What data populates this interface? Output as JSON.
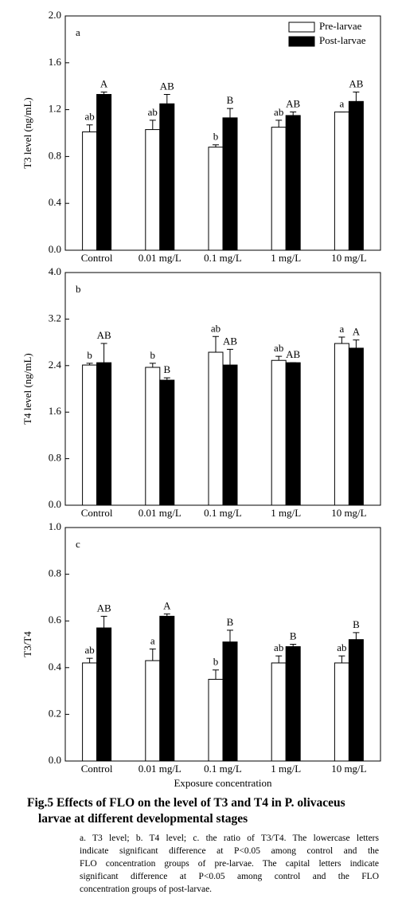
{
  "chart_data": [
    {
      "type": "bar",
      "panel": "a",
      "ylabel": "T3 level (ng/mL)",
      "categories": [
        "Control",
        "0.01 mg/L",
        "0.1 mg/L",
        "1 mg/L",
        "10 mg/L"
      ],
      "series": [
        {
          "name": "Pre-larvae",
          "color": "#ffffff",
          "values": [
            1.01,
            1.03,
            0.88,
            1.05,
            1.18
          ],
          "errors": [
            0.06,
            0.08,
            0.02,
            0.06,
            0
          ],
          "letters": [
            "ab",
            "ab",
            "b",
            "ab",
            "a"
          ]
        },
        {
          "name": "Post-larvae",
          "color": "#000000",
          "values": [
            1.33,
            1.25,
            1.13,
            1.15,
            1.27
          ],
          "errors": [
            0.02,
            0.08,
            0.08,
            0.03,
            0.08
          ],
          "letters": [
            "A",
            "AB",
            "B",
            "AB",
            "AB"
          ]
        }
      ],
      "ylim": [
        0,
        2
      ],
      "yticks": [
        {
          "value": 0,
          "label": "0.0"
        },
        0.4,
        0.8,
        1.2,
        1.6,
        {
          "value": 2,
          "label": "2.0"
        }
      ],
      "legend": "upper right"
    },
    {
      "type": "bar",
      "panel": "b",
      "ylabel": "T4 level (ng/mL)",
      "categories": [
        "Control",
        "0.01 mg/L",
        "0.1 mg/L",
        "1 mg/L",
        "10 mg/L"
      ],
      "series": [
        {
          "name": "Pre-larvae",
          "color": "#ffffff",
          "values": [
            2.41,
            2.37,
            2.63,
            2.49,
            2.78
          ],
          "errors": [
            0.03,
            0.07,
            0.27,
            0.07,
            0.11
          ],
          "letters": [
            "b",
            "b",
            "ab",
            "ab",
            "a"
          ]
        },
        {
          "name": "Post-larvae",
          "color": "#000000",
          "values": [
            2.45,
            2.15,
            2.41,
            2.45,
            2.7
          ],
          "errors": [
            0.33,
            0.04,
            0.27,
            0,
            0.14
          ],
          "letters": [
            "AB",
            "B",
            "AB",
            "AB",
            "A"
          ]
        }
      ],
      "ylim": [
        0,
        4
      ],
      "yticks": [
        {
          "value": 0,
          "label": "0.0"
        },
        0.8,
        1.6,
        2.4,
        3.2,
        {
          "value": 4,
          "label": "4.0"
        }
      ]
    },
    {
      "type": "bar",
      "panel": "c",
      "ylabel": "T3/T4",
      "xlabel": "Exposure concentration",
      "categories": [
        "Control",
        "0.01 mg/L",
        "0.1 mg/L",
        "1 mg/L",
        "10 mg/L"
      ],
      "series": [
        {
          "name": "Pre-larvae",
          "color": "#ffffff",
          "values": [
            0.42,
            0.43,
            0.35,
            0.42,
            0.42
          ],
          "errors": [
            0.02,
            0.05,
            0.04,
            0.03,
            0.03
          ],
          "letters": [
            "ab",
            "a",
            "b",
            "ab",
            "ab"
          ]
        },
        {
          "name": "Post-larvae",
          "color": "#000000",
          "values": [
            0.57,
            0.62,
            0.51,
            0.49,
            0.52
          ],
          "errors": [
            0.05,
            0.01,
            0.05,
            0.01,
            0.03
          ],
          "letters": [
            "AB",
            "A",
            "B",
            "B",
            "B"
          ]
        }
      ],
      "ylim": [
        0,
        1
      ],
      "yticks": [
        {
          "value": 0,
          "label": "0.0"
        },
        0.2,
        0.4,
        0.6,
        0.8,
        {
          "value": 1,
          "label": "1.0"
        }
      ]
    }
  ],
  "caption": {
    "title_lines": [
      "Fig.5 Effects of FLO on the level of T3 and T4 in P. olivaceus",
      "larvae at different developmental stages"
    ],
    "body_lines": [
      "a. T3 level; b. T4 level; c. the ratio of T3/T4. The lowercase letters",
      "indicate significant difference at P<0.05 among control and the",
      "FLO concentration groups of pre-larvae. The capital letters indicate",
      "significant difference at P<0.05 among control and the FLO",
      "concentration groups of post-larvae."
    ]
  }
}
